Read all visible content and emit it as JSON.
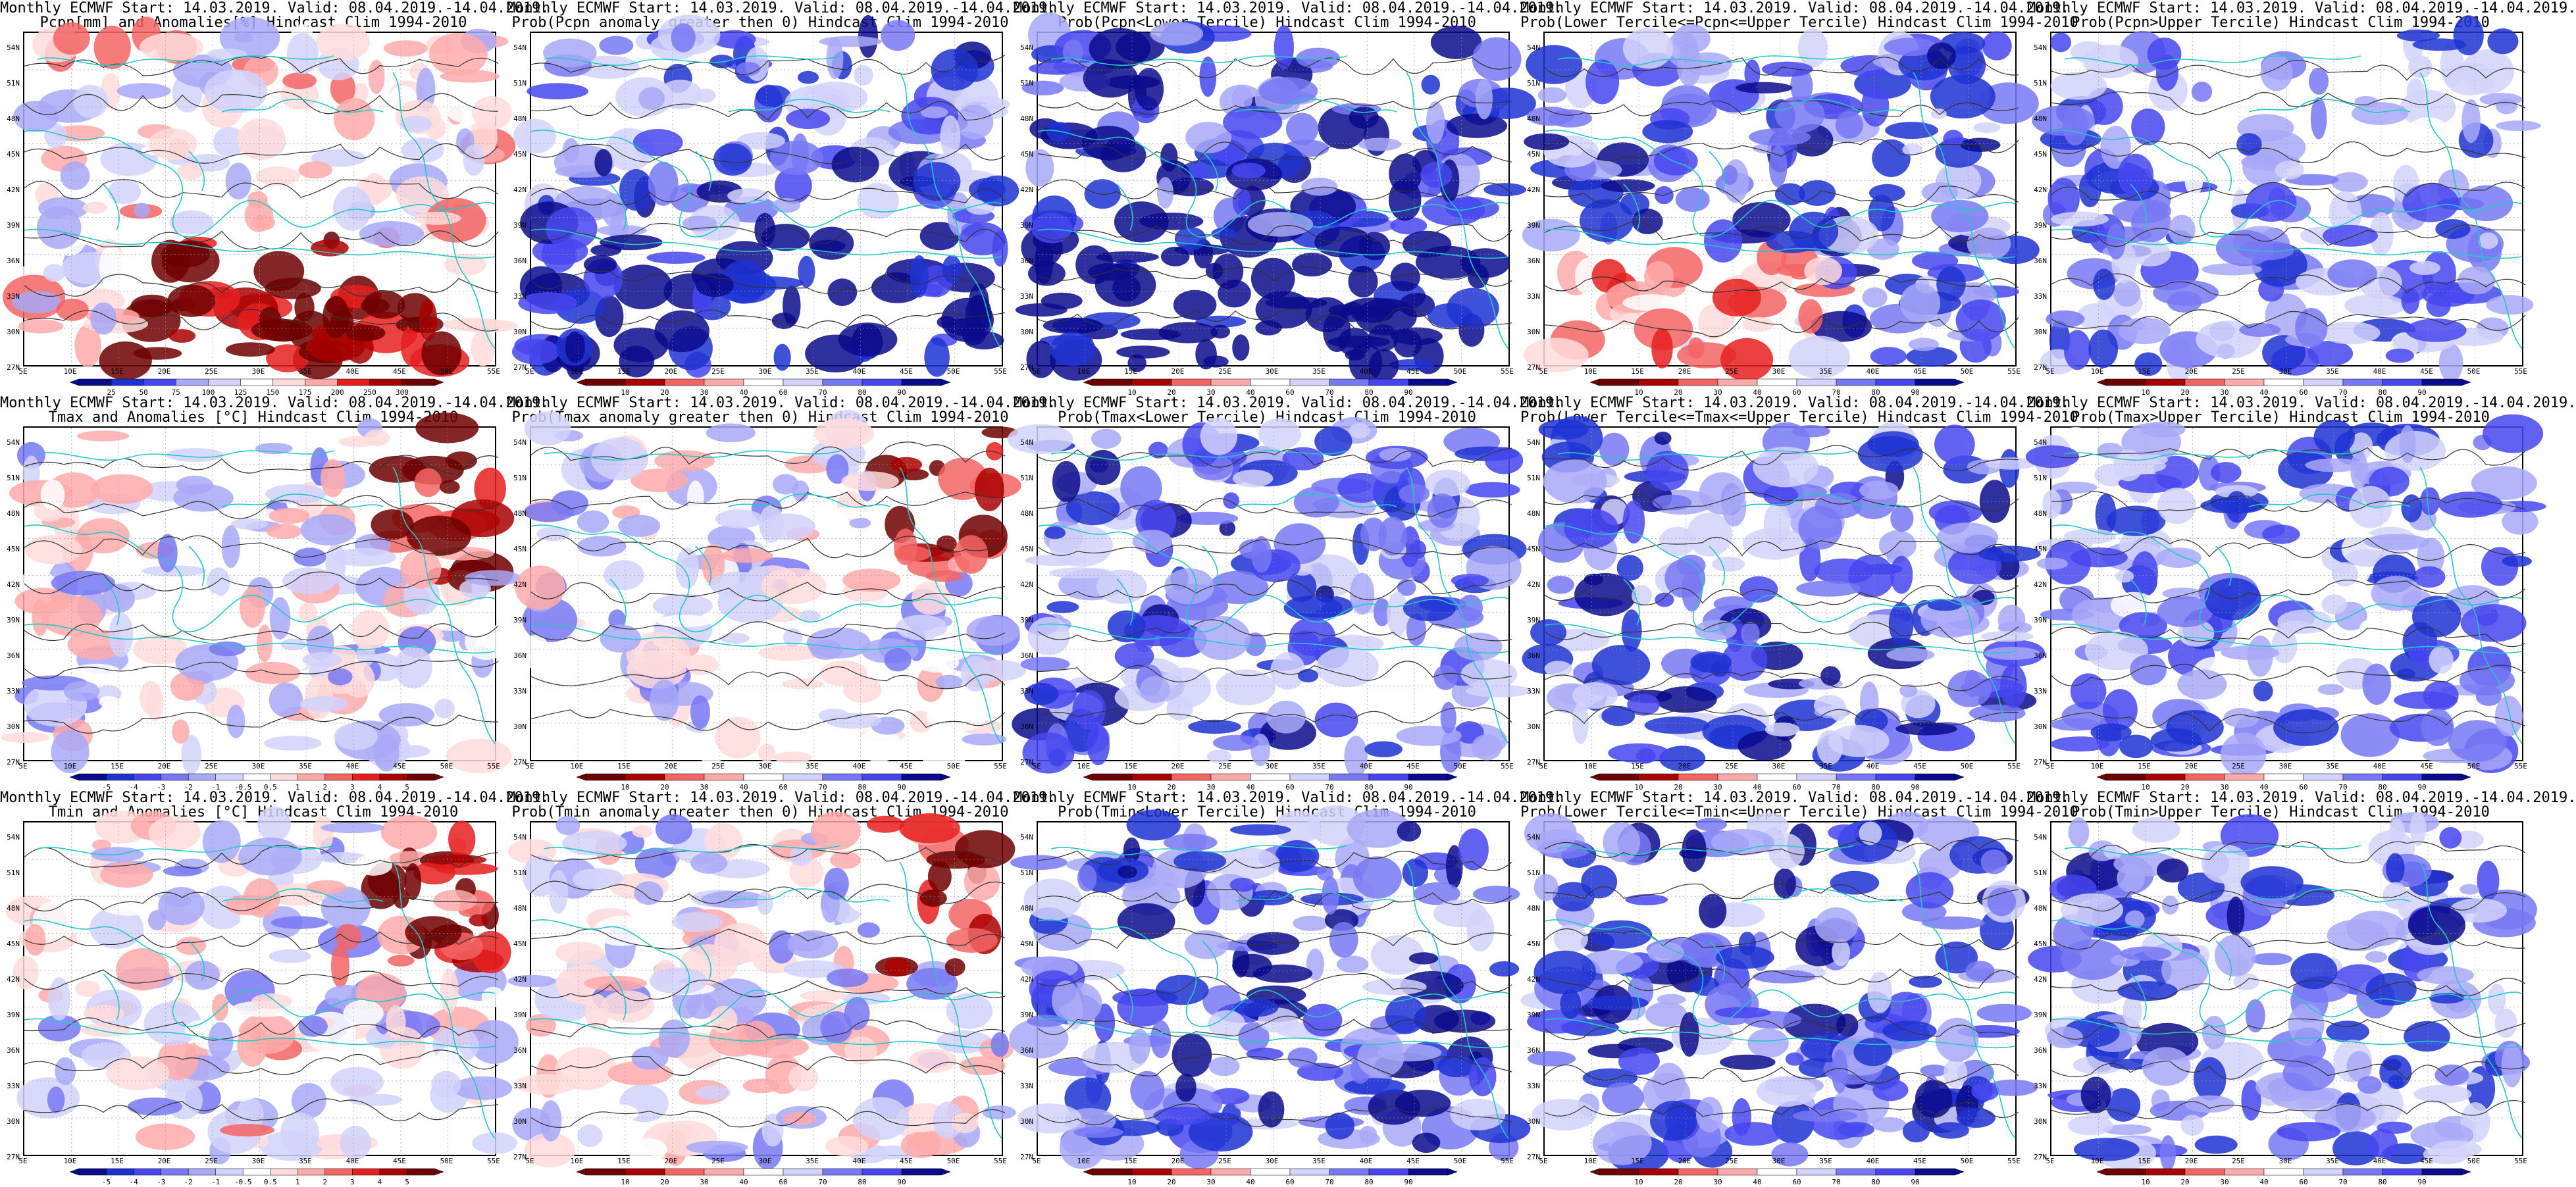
{
  "colors": {
    "blue_scale": [
      "#0a0a8c",
      "#1e32d2",
      "#4646f0",
      "#7878f5",
      "#a8a8f8",
      "#d2d2fc",
      "#ffffff",
      "#ffdcdc",
      "#ffaaaa",
      "#f56464",
      "#e61e1e",
      "#aa0000",
      "#6e0000"
    ],
    "contour": "#333333",
    "coast": "#22c8c8"
  },
  "axes": {
    "lat_labels": [
      "54N",
      "51N",
      "48N",
      "45N",
      "42N",
      "39N",
      "36N",
      "33N",
      "30N",
      "27N"
    ],
    "lon_labels": [
      "5E",
      "10E",
      "15E",
      "20E",
      "25E",
      "30E",
      "35E",
      "40E",
      "45E",
      "50E",
      "55E"
    ]
  },
  "colorbars": {
    "pcpn_anom": [
      "25",
      "50",
      "75",
      "100",
      "125",
      "150",
      "175",
      "200",
      "250",
      "300"
    ],
    "prob": [
      "10",
      "20",
      "30",
      "40",
      "60",
      "70",
      "80",
      "90"
    ],
    "temp_anom": [
      "-5",
      "-4",
      "-3",
      "-2",
      "-1",
      "-0.5",
      "0.5",
      "1",
      "2",
      "3",
      "4",
      "5"
    ]
  },
  "panels": [
    {
      "title1": "Monthly ECMWF Start: 14.03.2019. Valid: 08.04.2019.-14.04.2019.",
      "title2": "Pcpn[mm] and Anomalies[%] Hindcast Clim 1994-2010",
      "cbar": "pcpn_anom",
      "bias": -0.05,
      "red_south": true
    },
    {
      "title1": "Monthly ECMWF Start: 14.03.2019. Valid: 08.04.2019.-14.04.2019.",
      "title2": "Prob(Pcpn anomaly greater then 0) Hindcast Clim 1994-2010",
      "cbar": "prob",
      "bias": 0.55,
      "blue_south": true
    },
    {
      "title1": "Monthly ECMWF Start: 14.03.2019. Valid: 08.04.2019.-14.04.2019.",
      "title2": "Prob(Pcpn<Lower Tercile) Hindcast Clim 1994-2010",
      "cbar": "prob",
      "bias": 0.7,
      "blue_south": true
    },
    {
      "title1": "Monthly ECMWF Start: 14.03.2019. Valid: 08.04.2019.-14.04.2019.",
      "title2": "Prob(Lower Tercile<=Pcpn<=Upper Tercile) Hindcast Clim 1994-2010",
      "cbar": "prob",
      "bias": 0.6,
      "red_sw": true
    },
    {
      "title1": "Monthly ECMWF Start: 14.03.2019. Valid: 08.04.2019.-14.04.2019.",
      "title2": "Prob(Pcpn>Upper Tercile) Hindcast Clim 1994-2010",
      "cbar": "prob",
      "bias": 0.45
    },
    {
      "title1": "Monthly ECMWF Start: 14.03.2019. Valid: 08.04.2019.-14.04.2019.",
      "title2": "Tmax and Anomalies [°C] Hindcast Clim 1994-2010",
      "cbar": "temp_anom",
      "bias": 0.05,
      "red_ne": true
    },
    {
      "title1": "Monthly ECMWF Start: 14.03.2019. Valid: 08.04.2019.-14.04.2019.",
      "title2": "Prob(Tmax anomaly greater then 0) Hindcast Clim 1994-2010",
      "cbar": "prob",
      "bias": 0.1,
      "red_ne": true
    },
    {
      "title1": "Monthly ECMWF Start: 14.03.2019. Valid: 08.04.2019.-14.04.2019.",
      "title2": "Prob(Tmax<Lower Tercile) Hindcast Clim 1994-2010",
      "cbar": "prob",
      "bias": 0.55
    },
    {
      "title1": "Monthly ECMWF Start: 14.03.2019. Valid: 08.04.2019.-14.04.2019.",
      "title2": "Prob(Lower Tercile<=Tmax<=Upper Tercile) Hindcast Clim 1994-2010",
      "cbar": "prob",
      "bias": 0.6
    },
    {
      "title1": "Monthly ECMWF Start: 14.03.2019. Valid: 08.04.2019.-14.04.2019.",
      "title2": "Prob(Tmax>Upper Tercile) Hindcast Clim 1994-2010",
      "cbar": "prob",
      "bias": 0.45
    },
    {
      "title1": "Monthly ECMWF Start: 14.03.2019. Valid: 08.04.2019.-14.04.2019.",
      "title2": "Tmin and Anomalies [°C] Hindcast Clim 1994-2010",
      "cbar": "temp_anom",
      "bias": 0.02,
      "red_ne": true
    },
    {
      "title1": "Monthly ECMWF Start: 14.03.2019. Valid: 08.04.2019.-14.04.2019.",
      "title2": "Prob(Tmin anomaly greater then 0) Hindcast Clim 1994-2010",
      "cbar": "prob",
      "bias": 0.05,
      "red_ne": true
    },
    {
      "title1": "Monthly ECMWF Start: 14.03.2019. Valid: 08.04.2019.-14.04.2019.",
      "title2": "Prob(Tmin<Lower Tercile) Hindcast Clim 1994-2010",
      "cbar": "prob",
      "bias": 0.6
    },
    {
      "title1": "Monthly ECMWF Start: 14.03.2019. Valid: 08.04.2019.-14.04.2019.",
      "title2": "Prob(Lower Tercile<=Tmin<=Upper Tercile) Hindcast Clim 1994-2010",
      "cbar": "prob",
      "bias": 0.6
    },
    {
      "title1": "Monthly ECMWF Start: 14.03.2019. Valid: 08.04.2019.-14.04.2019.",
      "title2": "Prob(Tmin>Upper Tercile) Hindcast Clim 1994-2010",
      "cbar": "prob",
      "bias": 0.55
    }
  ]
}
